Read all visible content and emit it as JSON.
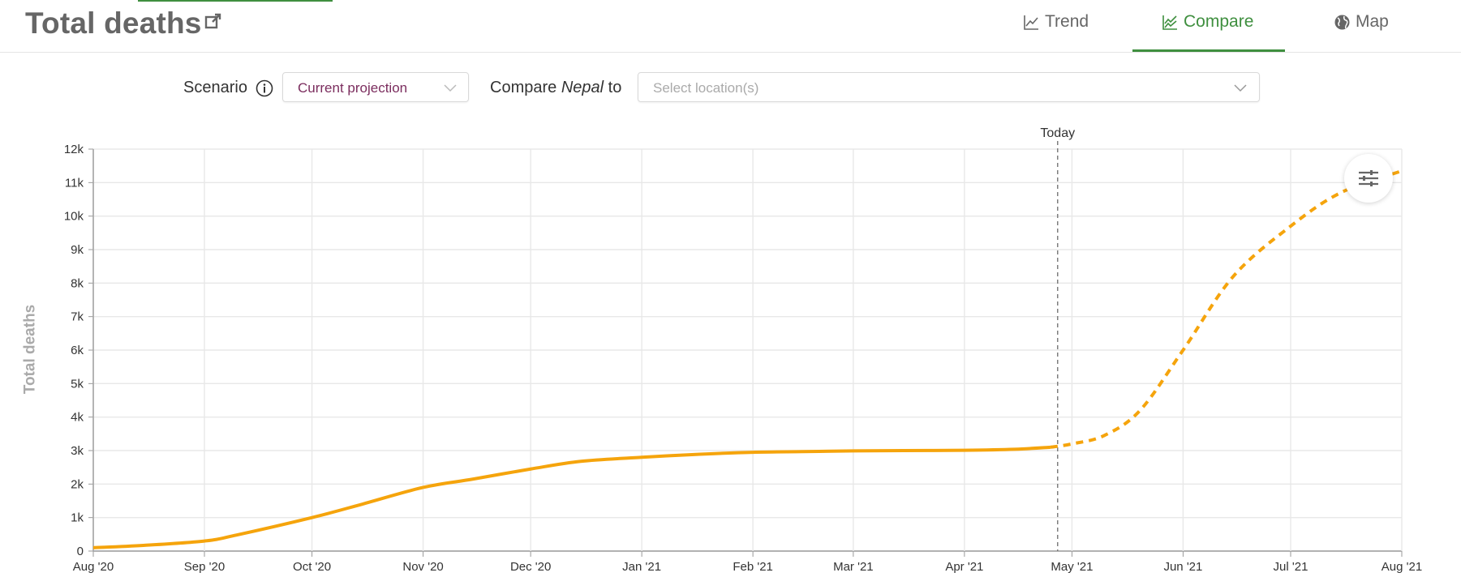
{
  "header": {
    "title": "Total deaths",
    "title_icon": "external-link-icon",
    "tabs": [
      {
        "label": "Trend",
        "icon": "line-chart-icon",
        "active": false
      },
      {
        "label": "Compare",
        "icon": "compare-chart-icon",
        "active": true
      },
      {
        "label": "Map",
        "icon": "globe-icon",
        "active": false
      }
    ]
  },
  "controls": {
    "scenario_label": "Scenario",
    "scenario_value": "Current projection",
    "compare_prefix": "Compare",
    "compare_location": "Nepal",
    "compare_suffix": "to",
    "location_placeholder": "Select location(s)"
  },
  "colors": {
    "accent": "#3f8f3f",
    "series": "#f5a40c",
    "scenario_text": "#7b2d5e"
  },
  "chart_data": {
    "type": "line",
    "ylabel": "Total deaths",
    "xlabel": "",
    "x_ticks": [
      "Aug '20",
      "Sep '20",
      "Oct '20",
      "Nov '20",
      "Dec '20",
      "Jan '21",
      "Feb '21",
      "Mar '21",
      "Apr '21",
      "May '21",
      "Jun '21",
      "Jul '21",
      "Aug '21"
    ],
    "y_ticks": [
      "0",
      "1k",
      "2k",
      "3k",
      "4k",
      "5k",
      "6k",
      "7k",
      "8k",
      "9k",
      "10k",
      "11k",
      "12k"
    ],
    "ylim": [
      0,
      12000
    ],
    "xlim": [
      "2020-08-01",
      "2021-08-01"
    ],
    "today_label": "Today",
    "today_date": "2021-04-27",
    "grid": true,
    "series": [
      {
        "style": "solid",
        "points": [
          [
            "2020-08-01",
            100
          ],
          [
            "2020-08-15",
            170
          ],
          [
            "2020-09-01",
            300
          ],
          [
            "2020-09-10",
            480
          ],
          [
            "2020-10-01",
            1000
          ],
          [
            "2020-10-15",
            1400
          ],
          [
            "2020-11-01",
            1900
          ],
          [
            "2020-11-15",
            2150
          ],
          [
            "2020-12-01",
            2450
          ],
          [
            "2020-12-15",
            2680
          ],
          [
            "2021-01-01",
            2800
          ],
          [
            "2021-01-15",
            2880
          ],
          [
            "2021-02-01",
            2950
          ],
          [
            "2021-02-15",
            2970
          ],
          [
            "2021-03-01",
            2990
          ],
          [
            "2021-03-15",
            3000
          ],
          [
            "2021-04-01",
            3010
          ],
          [
            "2021-04-15",
            3040
          ],
          [
            "2021-04-25",
            3100
          ]
        ]
      },
      {
        "style": "dashed",
        "points": [
          [
            "2021-04-25",
            3100
          ],
          [
            "2021-05-01",
            3200
          ],
          [
            "2021-05-10",
            3450
          ],
          [
            "2021-05-20",
            4200
          ],
          [
            "2021-06-01",
            6000
          ],
          [
            "2021-06-15",
            8200
          ],
          [
            "2021-07-01",
            9700
          ],
          [
            "2021-07-15",
            10700
          ],
          [
            "2021-08-01",
            11350
          ]
        ]
      }
    ]
  }
}
